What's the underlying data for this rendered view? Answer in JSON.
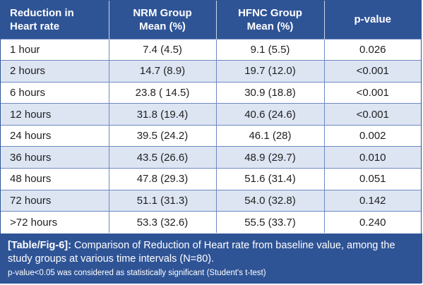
{
  "table": {
    "headers": [
      [
        "Reduction in",
        "Heart rate"
      ],
      [
        "NRM Group",
        "Mean (%)"
      ],
      [
        "HFNC Group",
        "Mean (%)"
      ],
      [
        "p-value"
      ]
    ],
    "rows": [
      [
        "1 hour",
        "7.4 (4.5)",
        "9.1 (5.5)",
        "0.026"
      ],
      [
        "2 hours",
        "14.7 (8.9)",
        "19.7 (12.0)",
        "<0.001"
      ],
      [
        "6 hours",
        "23.8 ( 14.5)",
        "30.9 (18.8)",
        "<0.001"
      ],
      [
        "12 hours",
        "31.8 (19.4)",
        "40.6 (24.6)",
        "<0.001"
      ],
      [
        "24 hours",
        "39.5 (24.2)",
        "46.1 (28)",
        "0.002"
      ],
      [
        "36 hours",
        "43.5 (26.6)",
        "48.9 (29.7)",
        "0.010"
      ],
      [
        "48 hours",
        "47.8 (29.3)",
        "51.6 (31.4)",
        "0.051"
      ],
      [
        "72 hours",
        "51.1 (31.3)",
        "54.0 (32.8)",
        "0.142"
      ],
      [
        ">72 hours",
        "53.3 (32.6)",
        "55.5 (33.7)",
        "0.240"
      ]
    ]
  },
  "caption": {
    "tag": "[Table/Fig-6]:",
    "text": "Comparison of Reduction of Heart rate from baseline value, among the study groups at various time intervals (N=80).",
    "note": "p-value<0.05 was considered as statistically significant (Student's t-test)"
  },
  "colors": {
    "header_bg": "#2f5496",
    "stripe_bg": "#dde5f3",
    "grid_line": "#6f88c4"
  }
}
